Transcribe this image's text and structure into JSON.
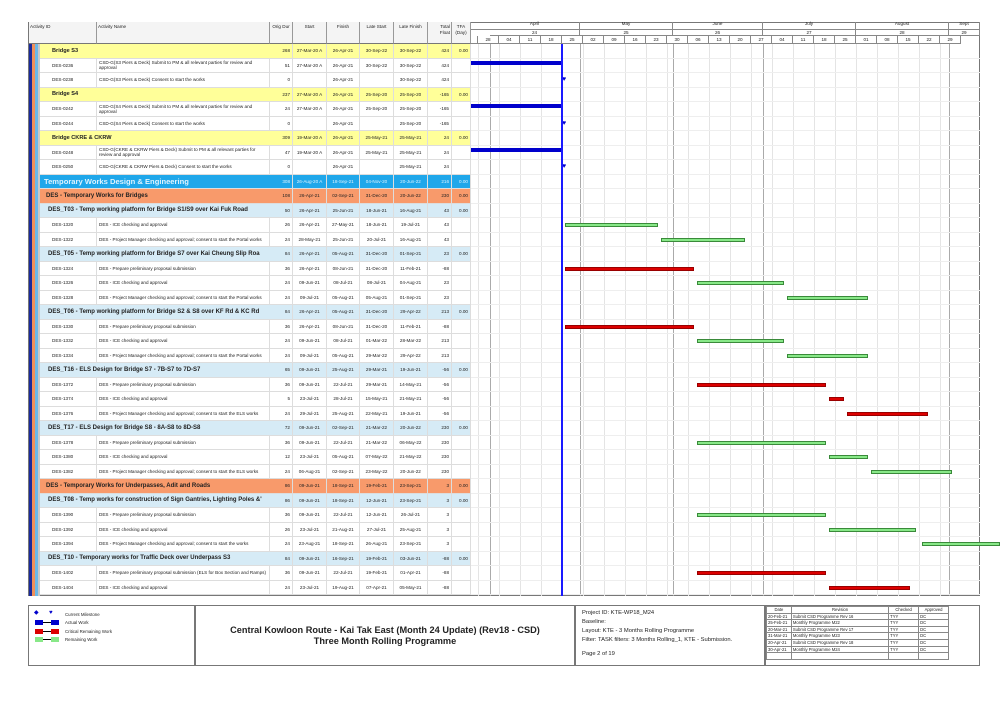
{
  "columns": {
    "id": "Activity ID",
    "name": "Activity Name",
    "dur": "Orig Dur",
    "start": "Start",
    "finish": "Finish",
    "lstart": "Late Start",
    "lfinish": "Late Finish",
    "tf": "Total Float",
    "tfa": "TFA (Day)"
  },
  "timescale": {
    "months": [
      {
        "label": "April",
        "num": "24"
      },
      {
        "label": "May",
        "num": "25"
      },
      {
        "label": "June",
        "num": "26"
      },
      {
        "label": "July",
        "num": "27"
      },
      {
        "label": "August",
        "num": "28"
      },
      {
        "label": "Sept",
        "num": "29"
      }
    ],
    "weeks": [
      "28",
      "04",
      "11",
      "18",
      "25",
      "02",
      "09",
      "16",
      "23",
      "30",
      "06",
      "13",
      "20",
      "27",
      "04",
      "11",
      "18",
      "25",
      "01",
      "08",
      "15",
      "22",
      "29"
    ]
  },
  "data_date": "26-Apr-21",
  "colors": {
    "actual": "#0000cc",
    "critical": "#dd0000",
    "remaining": "#88e888",
    "data_date": "#1a1aff",
    "wbs0": "#1fa7ea",
    "wbs1": "#f89a6b",
    "wbs2": "#d6ebf6",
    "bridge": "#ffff99"
  },
  "rows": [
    {
      "type": "s1",
      "name": "Bridge S3",
      "dur": "268",
      "start": "27-Mar-20 A",
      "finish": "26-Apr-21",
      "lstart": "30-Sep-22",
      "lfinish": "30-Sep-22",
      "tf": "424",
      "tfa": "0.00"
    },
    {
      "type": "act",
      "id": "DES-0236",
      "name": "CSD-G(S3 Piers & Deck) Submit to PM & all relevant parties for review and approval",
      "dur": "51",
      "start": "27-Mar-20 A",
      "finish": "26-Apr-21",
      "lstart": "30-Sep-22",
      "lfinish": "30-Sep-22",
      "tf": "424",
      "bar": "actual"
    },
    {
      "type": "act",
      "id": "DES-0238",
      "name": "CSD-G(S3 Piers & Deck) Consent to start the works",
      "dur": "0",
      "start": "",
      "finish": "26-Apr-21",
      "lstart": "",
      "lfinish": "30-Sep-22",
      "tf": "424",
      "bar": "milestone"
    },
    {
      "type": "s1",
      "name": "Bridge S4",
      "dur": "237",
      "start": "27-Mar-20 A",
      "finish": "26-Apr-21",
      "lstart": "25-Sep-20",
      "lfinish": "25-Sep-20",
      "tf": "-165",
      "tfa": "0.00"
    },
    {
      "type": "act",
      "id": "DES-0242",
      "name": "CSD-G(S4 Piers & Deck) Submit to PM & all relevant parties for review and approval",
      "dur": "24",
      "start": "27-Mar-20 A",
      "finish": "26-Apr-21",
      "lstart": "25-Sep-20",
      "lfinish": "25-Sep-20",
      "tf": "-165",
      "bar": "actual"
    },
    {
      "type": "act",
      "id": "DES-0244",
      "name": "CSD-G(S4 Piers & Deck) Consent to start the works",
      "dur": "0",
      "start": "",
      "finish": "26-Apr-21",
      "lstart": "",
      "lfinish": "25-Sep-20",
      "tf": "-165",
      "bar": "milestone"
    },
    {
      "type": "s1",
      "name": "Bridge CKRE & CKRW",
      "dur": "309",
      "start": "19-Mar-20 A",
      "finish": "26-Apr-21",
      "lstart": "25-May-21",
      "lfinish": "25-May-21",
      "tf": "24",
      "tfa": "0.00"
    },
    {
      "type": "act",
      "id": "DES-0248",
      "name": "CSD-G(CKRE & CKRW Piers & Deck) Submit to PM & all relevant parties for review and approval",
      "dur": "47",
      "start": "19-Mar-20 A",
      "finish": "26-Apr-21",
      "lstart": "25-May-21",
      "lfinish": "25-May-21",
      "tf": "24",
      "bar": "actual"
    },
    {
      "type": "act",
      "id": "DES-0250",
      "name": "CSD-G(CKRE & CKRW Piers & Deck) Consent to start the works",
      "dur": "0",
      "start": "",
      "finish": "26-Apr-21",
      "lstart": "",
      "lfinish": "25-May-21",
      "tf": "24",
      "bar": "milestone"
    },
    {
      "type": "wbs0",
      "name": "Temporary Works Design & Engineering",
      "dur": "308",
      "start": "26-Aug-20 A",
      "finish": "18-Sep-21",
      "lstart": "04-Nov-20",
      "lfinish": "20-Jun-22",
      "tf": "216",
      "tfa": "0.00"
    },
    {
      "type": "wbs1",
      "name": "DES - Temporary Works for Bridges",
      "dur": "108",
      "start": "26-Apr-21",
      "finish": "02-Sep-21",
      "lstart": "31-Dec-20",
      "lfinish": "20-Jun-22",
      "tf": "230",
      "tfa": "0.00"
    },
    {
      "type": "wbs2",
      "name": "DES_T03 - Temp working platform for Bridge S1/S9 over Kai Fuk Road",
      "dur": "50",
      "start": "26-Apr-21",
      "finish": "25-Jun-21",
      "lstart": "18-Jun-21",
      "lfinish": "16-Aug-21",
      "tf": "43",
      "tfa": "0.00"
    },
    {
      "type": "act",
      "id": "DES-1320",
      "name": "DES - ICE checking and approval",
      "dur": "26",
      "start": "26-Apr-21",
      "finish": "27-May-21",
      "lstart": "18-Jun-21",
      "lfinish": "19-Jul-21",
      "tf": "43",
      "bar": "remaining"
    },
    {
      "type": "act",
      "id": "DES-1322",
      "name": "DES - Project Manager checking and approval; consent to start the Portal works",
      "dur": "24",
      "start": "28-May-21",
      "finish": "25-Jun-21",
      "lstart": "20-Jul-21",
      "lfinish": "16-Aug-21",
      "tf": "43",
      "bar": "remaining"
    },
    {
      "type": "wbs2",
      "name": "DES_T05 - Temp working platform for Bridge S7 over Kai Cheung Slip Roa",
      "dur": "84",
      "start": "26-Apr-21",
      "finish": "05-Aug-21",
      "lstart": "31-Dec-20",
      "lfinish": "01-Sep-21",
      "tf": "23",
      "tfa": "0.00"
    },
    {
      "type": "act",
      "id": "DES-1324",
      "name": "DES - Prepare preliminary proposal submission",
      "dur": "36",
      "start": "26-Apr-21",
      "finish": "08-Jun-21",
      "lstart": "31-Dec-20",
      "lfinish": "11-Feb-21",
      "tf": "-88",
      "bar": "critical"
    },
    {
      "type": "act",
      "id": "DES-1326",
      "name": "DES - ICE checking and approval",
      "dur": "24",
      "start": "09-Jun-21",
      "finish": "08-Jul-21",
      "lstart": "08-Jul-21",
      "lfinish": "04-Aug-21",
      "tf": "23",
      "bar": "remaining"
    },
    {
      "type": "act",
      "id": "DES-1328",
      "name": "DES - Project Manager checking and approval; consent to start the Portal works",
      "dur": "24",
      "start": "09-Jul-21",
      "finish": "05-Aug-21",
      "lstart": "05-Aug-21",
      "lfinish": "01-Sep-21",
      "tf": "23",
      "bar": "remaining"
    },
    {
      "type": "wbs2",
      "name": "DES_T06 - Temp working platform for Bridge S2 & S8 over KF Rd & KC Rd",
      "dur": "84",
      "start": "26-Apr-21",
      "finish": "05-Aug-21",
      "lstart": "31-Dec-20",
      "lfinish": "29-Apr-22",
      "tf": "213",
      "tfa": "0.00"
    },
    {
      "type": "act",
      "id": "DES-1330",
      "name": "DES - Prepare preliminary proposal submission",
      "dur": "36",
      "start": "26-Apr-21",
      "finish": "08-Jun-21",
      "lstart": "31-Dec-20",
      "lfinish": "11-Feb-21",
      "tf": "-88",
      "bar": "critical"
    },
    {
      "type": "act",
      "id": "DES-1332",
      "name": "DES - ICE checking and approval",
      "dur": "24",
      "start": "09-Jun-21",
      "finish": "08-Jul-21",
      "lstart": "01-Mar-22",
      "lfinish": "28-Mar-22",
      "tf": "213",
      "bar": "remaining"
    },
    {
      "type": "act",
      "id": "DES-1334",
      "name": "DES - Project Manager checking and approval; consent to start the Portal works",
      "dur": "24",
      "start": "09-Jul-21",
      "finish": "05-Aug-21",
      "lstart": "29-Mar-22",
      "lfinish": "29-Apr-22",
      "tf": "213",
      "bar": "remaining"
    },
    {
      "type": "wbs2",
      "name": "DES_T16 - ELS Design for Bridge S7 - 7B-S7 to 7D-S7",
      "dur": "65",
      "start": "09-Jun-21",
      "finish": "25-Aug-21",
      "lstart": "29-Mar-21",
      "lfinish": "19-Jun-21",
      "tf": "-56",
      "tfa": "0.00"
    },
    {
      "type": "act",
      "id": "DES-1372",
      "name": "DES - Prepare preliminary proposal submission",
      "dur": "36",
      "start": "09-Jun-21",
      "finish": "22-Jul-21",
      "lstart": "29-Mar-21",
      "lfinish": "14-May-21",
      "tf": "-56",
      "bar": "critical"
    },
    {
      "type": "act",
      "id": "DES-1374",
      "name": "DES - ICE checking and approval",
      "dur": "5",
      "start": "23-Jul-21",
      "finish": "28-Jul-21",
      "lstart": "15-May-21",
      "lfinish": "21-May-21",
      "tf": "-56",
      "bar": "critical"
    },
    {
      "type": "act",
      "id": "DES-1376",
      "name": "DES - Project Manager checking and approval; consent to start the ELS works",
      "dur": "24",
      "start": "29-Jul-21",
      "finish": "25-Aug-21",
      "lstart": "22-May-21",
      "lfinish": "19-Jun-21",
      "tf": "-56",
      "bar": "critical"
    },
    {
      "type": "wbs2",
      "name": "DES_T17 - ELS Design for Bridge S8 - 8A-S8 to 8D-S8",
      "dur": "72",
      "start": "09-Jun-21",
      "finish": "02-Sep-21",
      "lstart": "21-Mar-22",
      "lfinish": "20-Jun-22",
      "tf": "230",
      "tfa": "0.00"
    },
    {
      "type": "act",
      "id": "DES-1378",
      "name": "DES - Prepare preliminary proposal submission",
      "dur": "36",
      "start": "09-Jun-21",
      "finish": "22-Jul-21",
      "lstart": "21-Mar-22",
      "lfinish": "06-May-22",
      "tf": "230",
      "bar": "remaining"
    },
    {
      "type": "act",
      "id": "DES-1380",
      "name": "DES - ICE checking and approval",
      "dur": "12",
      "start": "23-Jul-21",
      "finish": "05-Aug-21",
      "lstart": "07-May-22",
      "lfinish": "21-May-22",
      "tf": "230",
      "bar": "remaining"
    },
    {
      "type": "act",
      "id": "DES-1382",
      "name": "DES - Project Manager checking and approval; consent to start the ELS works",
      "dur": "24",
      "start": "06-Aug-21",
      "finish": "02-Sep-21",
      "lstart": "23-May-22",
      "lfinish": "20-Jun-22",
      "tf": "230",
      "bar": "remaining"
    },
    {
      "type": "wbs1",
      "name": "DES - Temporary Works for Underpasses, Adit and Roads",
      "dur": "86",
      "start": "09-Jun-21",
      "finish": "18-Sep-21",
      "lstart": "19-Feb-21",
      "lfinish": "23-Sep-21",
      "tf": "3",
      "tfa": "0.00"
    },
    {
      "type": "wbs2",
      "name": "DES_T08 - Temp works for construction of Sign Gantries, Lighting Poles &'",
      "dur": "86",
      "start": "09-Jun-21",
      "finish": "18-Sep-21",
      "lstart": "12-Jun-21",
      "lfinish": "23-Sep-21",
      "tf": "3",
      "tfa": "0.00"
    },
    {
      "type": "act",
      "id": "DES-1390",
      "name": "DES - Prepare preliminary proposal submission",
      "dur": "36",
      "start": "09-Jun-21",
      "finish": "22-Jul-21",
      "lstart": "12-Jun-21",
      "lfinish": "26-Jul-21",
      "tf": "3",
      "bar": "remaining"
    },
    {
      "type": "act",
      "id": "DES-1392",
      "name": "DES - ICE checking and approval",
      "dur": "26",
      "start": "23-Jul-21",
      "finish": "21-Aug-21",
      "lstart": "27-Jul-21",
      "lfinish": "25-Aug-21",
      "tf": "3",
      "bar": "remaining"
    },
    {
      "type": "act",
      "id": "DES-1394",
      "name": "DES - Project Manager checking and approval; consent to start the works",
      "dur": "24",
      "start": "23-Aug-21",
      "finish": "18-Sep-21",
      "lstart": "26-Aug-21",
      "lfinish": "23-Sep-21",
      "tf": "3",
      "bar": "remaining"
    },
    {
      "type": "wbs2",
      "name": "DES_T10 - Temporary works for Traffic Deck over Underpass S3",
      "dur": "84",
      "start": "09-Jun-21",
      "finish": "16-Sep-21",
      "lstart": "19-Feb-21",
      "lfinish": "03-Jun-21",
      "tf": "-88",
      "tfa": "0.00"
    },
    {
      "type": "act",
      "id": "DES-1402",
      "name": "DES - Prepare preliminary proposal submission (ELS for Box Section and Ramps)",
      "dur": "36",
      "start": "09-Jun-21",
      "finish": "22-Jul-21",
      "lstart": "19-Feb-21",
      "lfinish": "01-Apr-21",
      "tf": "-88",
      "bar": "critical"
    },
    {
      "type": "act",
      "id": "DES-1404",
      "name": "DES - ICE checking and approval",
      "dur": "24",
      "start": "23-Jul-21",
      "finish": "19-Aug-21",
      "lstart": "07-Apr-21",
      "lfinish": "05-May-21",
      "tf": "-88",
      "bar": "critical"
    }
  ],
  "legend": [
    "Current Milestone",
    "Actual Work",
    "Critical Remaining Work",
    "Remaining Work"
  ],
  "footer": {
    "title1": "Central Kowloon Route - Kai Tak East (Month 24 Update) (Rev18 - CSD)",
    "title2": "Three Month Rolling Programme",
    "project_id": "Project ID: KTE-WP18_M24",
    "baseline": "Baseline:",
    "layout": "Layout: KTE - 3 Months Rolling Programme",
    "filter": "Filter: TASK filters: 3 Months Rolling_1, KTE - Submission.",
    "page": "Page 2 of 19",
    "rev_headers": [
      "Date",
      "Revision",
      "Checked",
      "Approved"
    ],
    "revisions": [
      [
        "20-Feb-21",
        "Submit CSD Programme Rev 16",
        "TYY",
        "DC"
      ],
      [
        "25-Feb-21",
        "Monthly Programme M22",
        "TYY",
        "DC"
      ],
      [
        "20-Mar-21",
        "Submit CSD Programme Rev 17",
        "TYY",
        "DC"
      ],
      [
        "31-Mar-21",
        "Monthly Programme M23",
        "TYY",
        "DC"
      ],
      [
        "20-Apr-21",
        "Submit CSD Programme Rev 18",
        "TYY",
        "DC"
      ],
      [
        "30-Apr-21",
        "Monthly Programme M24",
        "TYY",
        "DC"
      ]
    ]
  }
}
